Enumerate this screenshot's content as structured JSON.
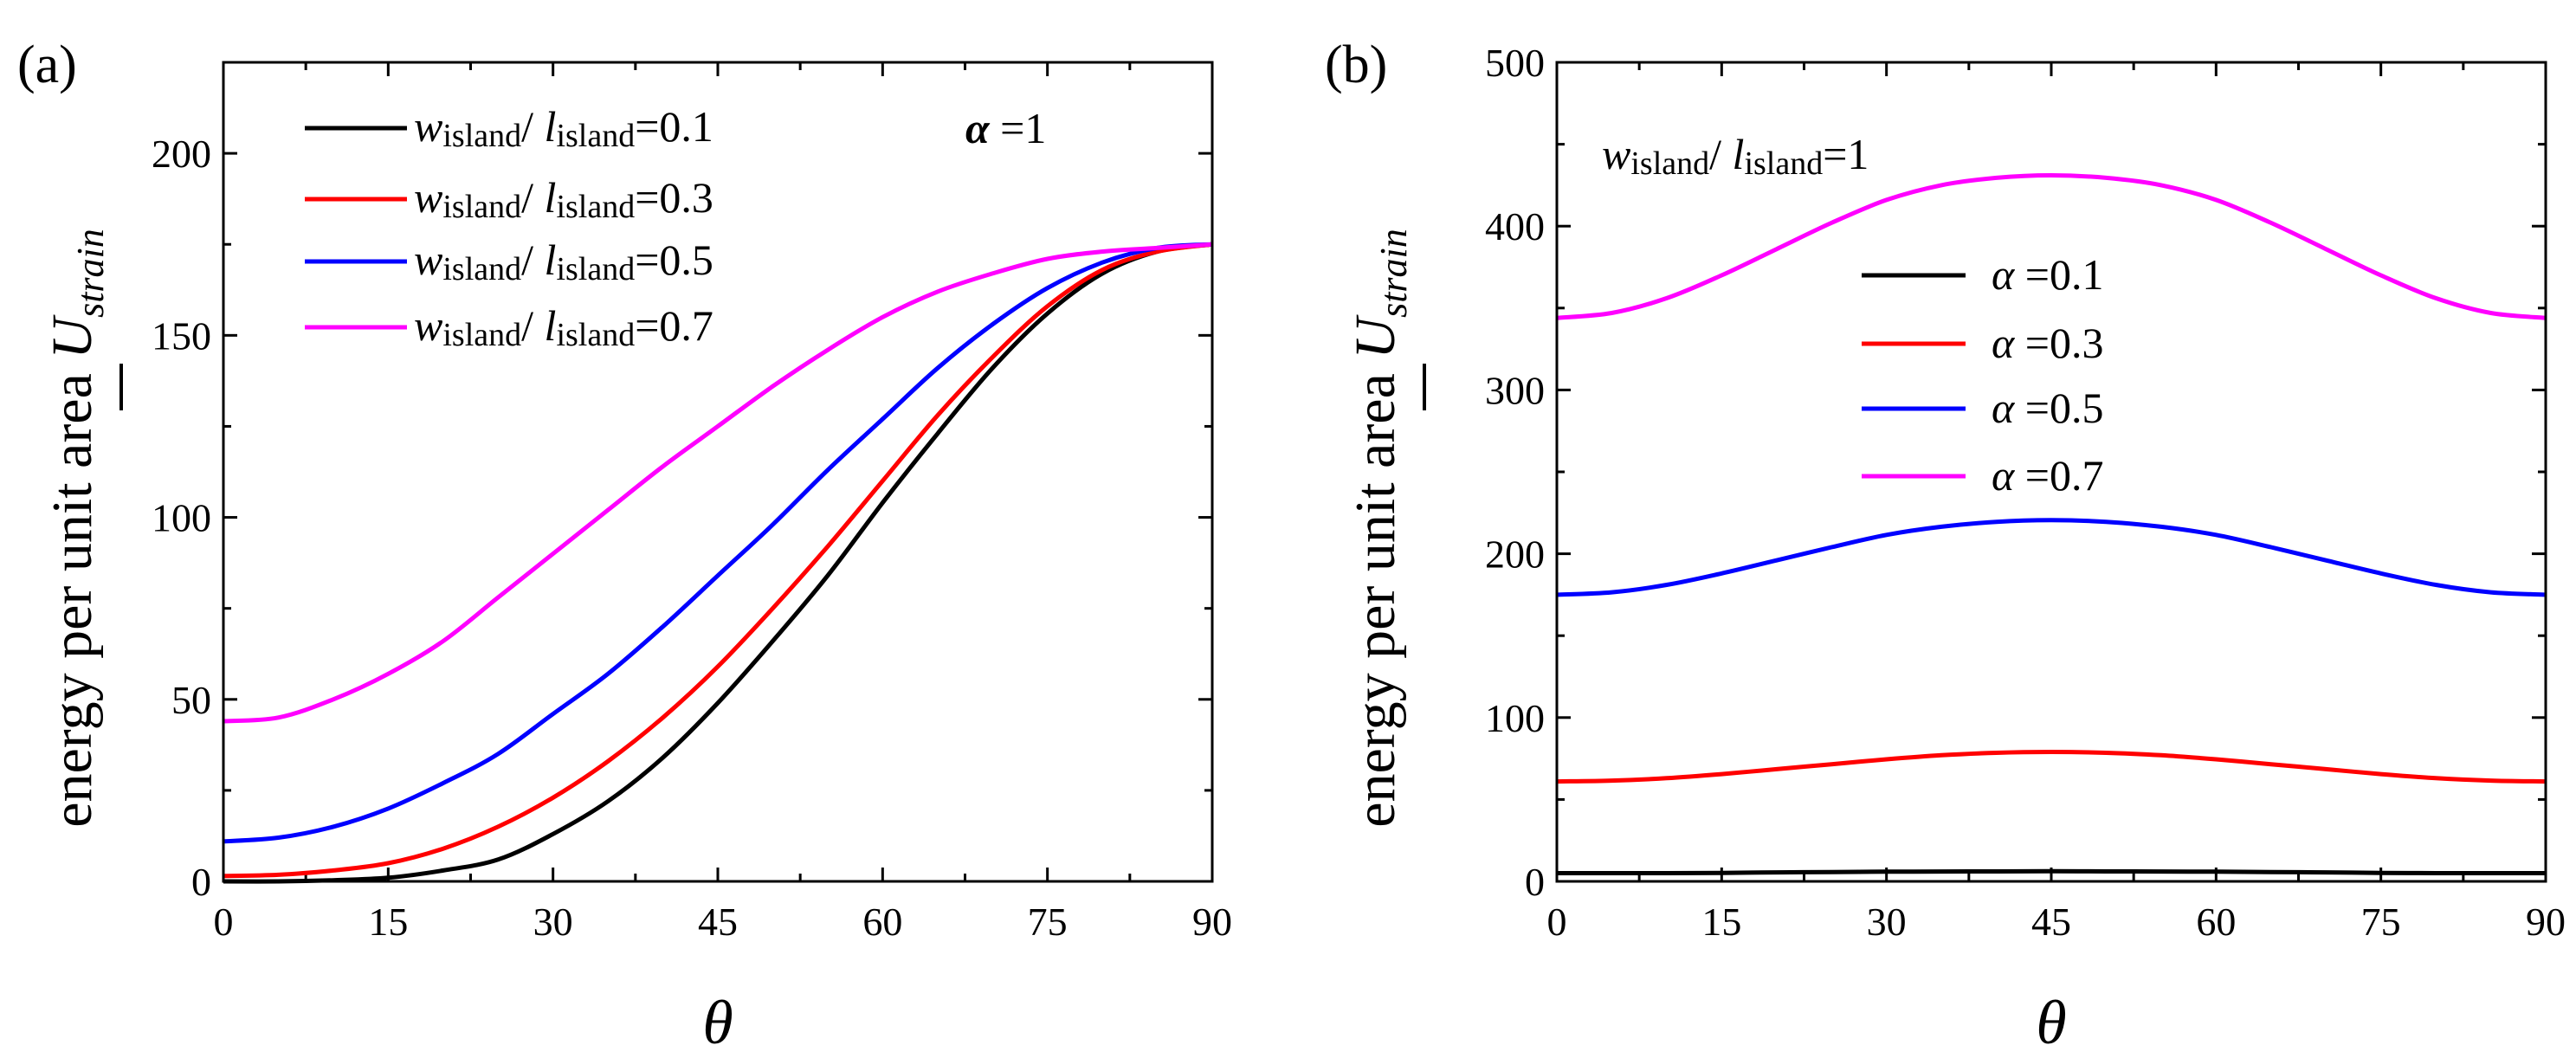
{
  "chart_data": [
    {
      "type": "line",
      "panel_label": "(a)",
      "xlabel": "θ",
      "ylabel": "energy per unit area ",
      "ylabel_symbol": "U",
      "ylabel_sub": "strain",
      "annotation": {
        "symbol": "α",
        "text": " =1"
      },
      "xlim": [
        0,
        90
      ],
      "ylim": [
        0,
        225
      ],
      "xticks": [
        0,
        15,
        30,
        45,
        60,
        75,
        90
      ],
      "yticks": [
        0,
        50,
        100,
        150,
        200
      ],
      "x": [
        0,
        5,
        10,
        15,
        20,
        25,
        30,
        35,
        40,
        45,
        50,
        55,
        60,
        65,
        70,
        75,
        80,
        85,
        90
      ],
      "legend_position": "top-left",
      "series": [
        {
          "name": "w_island/l_island=0.1",
          "ratio": "=0.1",
          "color": "#000000",
          "values": [
            0,
            0,
            0.3,
            1,
            3,
            6,
            13,
            22,
            34,
            49,
            66,
            84,
            104,
            123,
            141,
            156,
            167,
            173,
            175
          ]
        },
        {
          "name": "w_island/l_island=0.3",
          "ratio": "=0.3",
          "color": "#ff0000",
          "values": [
            1.5,
            1.8,
            3,
            5,
            9,
            15,
            23,
            33,
            45,
            59,
            75,
            92,
            110,
            128,
            144,
            158,
            168,
            173,
            175
          ]
        },
        {
          "name": "w_island/l_island=0.5",
          "ratio": "=0.5",
          "color": "#0000ff",
          "values": [
            11,
            12,
            15,
            20,
            27,
            35,
            46,
            57,
            70,
            84,
            98,
            113,
            127,
            141,
            153,
            163,
            170,
            174,
            175
          ]
        },
        {
          "name": "w_island/l_island=0.7",
          "ratio": "=0.7",
          "color": "#ff00ff",
          "values": [
            44,
            45,
            50,
            57,
            66,
            78,
            90,
            102,
            114,
            125,
            136,
            146,
            155,
            162,
            167,
            171,
            173,
            174,
            175
          ]
        }
      ]
    },
    {
      "type": "line",
      "panel_label": "(b)",
      "xlabel": "θ",
      "ylabel": "energy per unit area ",
      "ylabel_symbol": "U",
      "ylabel_sub": "strain",
      "annotation": {
        "ratio": "=1"
      },
      "xlim": [
        0,
        90
      ],
      "ylim": [
        0,
        500
      ],
      "xticks": [
        0,
        15,
        30,
        45,
        60,
        75,
        90
      ],
      "yticks": [
        0,
        100,
        200,
        300,
        400,
        500
      ],
      "x": [
        0,
        5,
        10,
        15,
        20,
        25,
        30,
        35,
        40,
        45,
        50,
        55,
        60,
        65,
        70,
        75,
        80,
        85,
        90
      ],
      "legend_position": "center",
      "series": [
        {
          "name": "α =0.1",
          "alpha_text": " =0.1",
          "color": "#000000",
          "values": [
            5,
            5,
            5,
            5.2,
            5.5,
            5.7,
            5.9,
            6,
            6.1,
            6.2,
            6.1,
            6,
            5.9,
            5.7,
            5.5,
            5.2,
            5,
            5,
            5
          ]
        },
        {
          "name": "α =0.3",
          "alpha_text": " =0.3",
          "color": "#ff0000",
          "values": [
            61,
            61.5,
            63,
            65.5,
            68.5,
            71.5,
            74.5,
            77,
            78.5,
            79,
            78.5,
            77,
            74.5,
            71.5,
            68.5,
            65.5,
            63,
            61.5,
            61
          ]
        },
        {
          "name": "α =0.5",
          "alpha_text": " =0.5",
          "color": "#0000ff",
          "values": [
            175,
            176.5,
            181,
            188,
            196,
            204,
            211.5,
            216.5,
            219.5,
            220.5,
            219.5,
            216.5,
            211.5,
            204,
            196,
            188,
            181,
            176.5,
            175
          ]
        },
        {
          "name": "α =0.7",
          "alpha_text": " =0.7",
          "color": "#ff00ff",
          "values": [
            344,
            347,
            356,
            370,
            386,
            402,
            416,
            425,
            429.5,
            431,
            429.5,
            425,
            416,
            402,
            386,
            370,
            356,
            347,
            344
          ]
        }
      ]
    }
  ],
  "labels": {
    "w": "w",
    "l": "l",
    "island": "island",
    "slash": "/ ",
    "alpha": "α"
  }
}
